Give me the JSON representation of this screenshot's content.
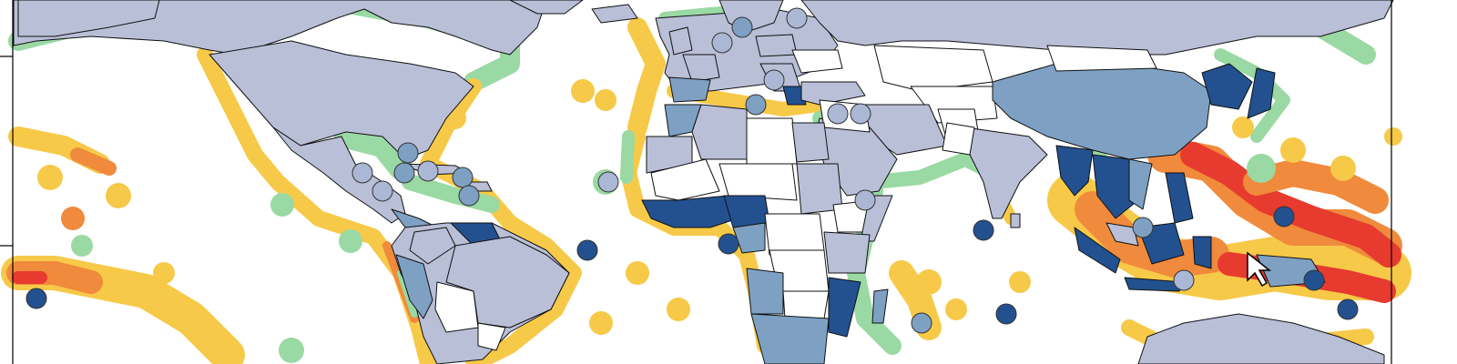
{
  "map": {
    "kind": "world choropleth with coastal reef-threat buffers and country markers",
    "colors": {
      "ocean": "#ffffff",
      "reef_low": "#9ad9a3",
      "reef_medium": "#f7c948",
      "reef_high": "#f08a3c",
      "reef_very_high": "#e63b2e",
      "land_class_1": "#ffffff",
      "land_class_2": "#b9bfd7",
      "land_class_3": "#7ea1c3",
      "land_class_4": "#23518f",
      "marker_light": "#aab8d6",
      "marker_medium": "#7ea1c3",
      "marker_dark": "#23518f",
      "border": "#111111"
    },
    "markers": [
      {
        "id": "marker-caribbean-1",
        "class": "medium"
      },
      {
        "id": "marker-caribbean-2",
        "class": "medium"
      },
      {
        "id": "marker-caribbean-3",
        "class": "light"
      },
      {
        "id": "marker-caribbean-4",
        "class": "light"
      },
      {
        "id": "marker-caribbean-5",
        "class": "medium"
      },
      {
        "id": "marker-caribbean-6",
        "class": "medium"
      },
      {
        "id": "marker-caribbean-7",
        "class": "light"
      },
      {
        "id": "marker-cape-verde",
        "class": "light"
      },
      {
        "id": "marker-gulf-of-guinea",
        "class": "dark"
      },
      {
        "id": "marker-ascension",
        "class": "dark"
      },
      {
        "id": "marker-pacific-west",
        "class": "dark"
      },
      {
        "id": "marker-mediterranean-1",
        "class": "medium"
      },
      {
        "id": "marker-mediterranean-2",
        "class": "light"
      },
      {
        "id": "marker-europe-1",
        "class": "medium"
      },
      {
        "id": "marker-europe-2",
        "class": "light"
      },
      {
        "id": "marker-europe-3",
        "class": "light"
      },
      {
        "id": "marker-middle-east-1",
        "class": "light"
      },
      {
        "id": "marker-middle-east-2",
        "class": "light"
      },
      {
        "id": "marker-horn-africa",
        "class": "light"
      },
      {
        "id": "marker-maldives",
        "class": "dark"
      },
      {
        "id": "marker-mauritius",
        "class": "medium"
      },
      {
        "id": "marker-chagos",
        "class": "dark"
      },
      {
        "id": "marker-sea-1",
        "class": "medium"
      },
      {
        "id": "marker-sea-2",
        "class": "light"
      },
      {
        "id": "marker-png",
        "class": "dark"
      },
      {
        "id": "marker-solomon",
        "class": "dark"
      },
      {
        "id": "marker-vanuatu",
        "class": "dark"
      }
    ]
  }
}
